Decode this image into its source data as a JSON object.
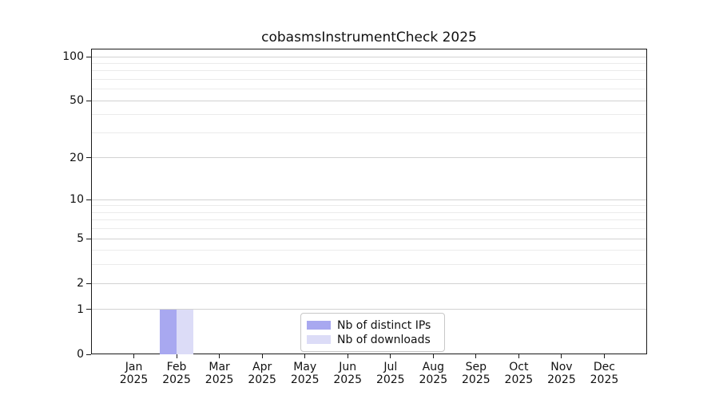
{
  "title": "cobasmsInstrumentCheck 2025",
  "chart_data": {
    "type": "bar",
    "title": "cobasmsInstrumentCheck 2025",
    "months": [
      "Jan",
      "Feb",
      "Mar",
      "Apr",
      "May",
      "Jun",
      "Jul",
      "Aug",
      "Sep",
      "Oct",
      "Nov",
      "Dec"
    ],
    "year_label": "2025",
    "series": [
      {
        "name": "Nb of distinct IPs",
        "color": "#a8a8f0",
        "values": [
          0,
          1,
          0,
          0,
          0,
          0,
          0,
          0,
          0,
          0,
          0,
          0
        ]
      },
      {
        "name": "Nb of downloads",
        "color": "#dcdcf7",
        "values": [
          0,
          1,
          0,
          0,
          0,
          0,
          0,
          0,
          0,
          0,
          0,
          0
        ]
      }
    ],
    "y_axis": {
      "scale": "log1p",
      "max": 100,
      "major_ticks": [
        0,
        1,
        2,
        5,
        10,
        20,
        50,
        100
      ],
      "minor_gridlines": [
        3,
        4,
        6,
        7,
        8,
        9,
        30,
        40,
        60,
        70,
        80,
        90
      ]
    },
    "x_axis": {
      "tick_labels_two_lines": true
    },
    "grid": "horizontal",
    "legend_position": "lower center"
  }
}
